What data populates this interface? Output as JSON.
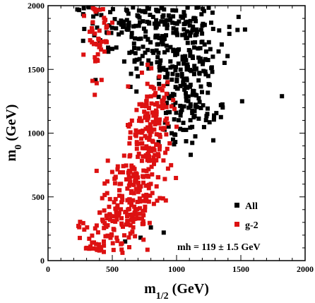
{
  "chart_data": {
    "type": "scatter",
    "xlabel": "m",
    "xlabel_sub": "1/2",
    "xlabel_unit": " (GeV)",
    "ylabel": "m",
    "ylabel_sub": "0",
    "ylabel_unit": " (GeV)",
    "xlim": [
      0,
      2000
    ],
    "ylim": [
      0,
      2000
    ],
    "x_ticks": [
      0,
      500,
      1000,
      1500,
      2000
    ],
    "y_ticks": [
      0,
      500,
      1000,
      1500,
      2000
    ],
    "x_tick_labels": [
      "0",
      "500",
      "1000",
      "1500",
      "2000"
    ],
    "y_tick_labels": [
      "0",
      "500",
      "1000",
      "1500",
      "2000"
    ],
    "legend_position": "bottom-right",
    "annotation": "mh = 119 ± 1.5 GeV",
    "series": [
      {
        "name": "All",
        "color": "#000000",
        "marker": "square",
        "regions": [
          {
            "cx": 830,
            "cy": 1880,
            "sx": 300,
            "sy": 80,
            "n": 130
          },
          {
            "cx": 1050,
            "cy": 1550,
            "sx": 150,
            "sy": 180,
            "n": 170
          },
          {
            "cx": 1080,
            "cy": 1150,
            "sx": 120,
            "sy": 130,
            "n": 70
          },
          {
            "cx": 700,
            "cy": 1650,
            "sx": 150,
            "sy": 150,
            "n": 40
          }
        ],
        "points": [
          [
            1820,
            1290
          ],
          [
            1510,
            1250
          ],
          [
            1345,
            1220
          ],
          [
            1110,
            830
          ],
          [
            900,
            220
          ],
          [
            720,
            180
          ],
          [
            600,
            150
          ],
          [
            800,
            260
          ],
          [
            1270,
            1510
          ],
          [
            1230,
            1640
          ]
        ]
      },
      {
        "name": "g-2",
        "color": "#dd1111",
        "marker": "square",
        "regions": [
          {
            "cx": 390,
            "cy": 1750,
            "sx": 45,
            "sy": 150,
            "n": 45
          },
          {
            "cx": 780,
            "cy": 950,
            "sx": 80,
            "sy": 210,
            "n": 140
          },
          {
            "cx": 640,
            "cy": 520,
            "sx": 100,
            "sy": 170,
            "n": 160
          },
          {
            "cx": 450,
            "cy": 230,
            "sx": 110,
            "sy": 110,
            "n": 70
          },
          {
            "cx": 850,
            "cy": 1230,
            "sx": 50,
            "sy": 100,
            "n": 30
          }
        ],
        "points": [
          [
            300,
            100
          ],
          [
            330,
            110
          ],
          [
            350,
            95
          ],
          [
            410,
            105
          ],
          [
            600,
            380
          ],
          [
            930,
            1400
          ],
          [
            960,
            1210
          ],
          [
            1000,
            1050
          ],
          [
            920,
            990
          ],
          [
            280,
            1920
          ],
          [
            350,
            1980
          ]
        ]
      }
    ]
  }
}
